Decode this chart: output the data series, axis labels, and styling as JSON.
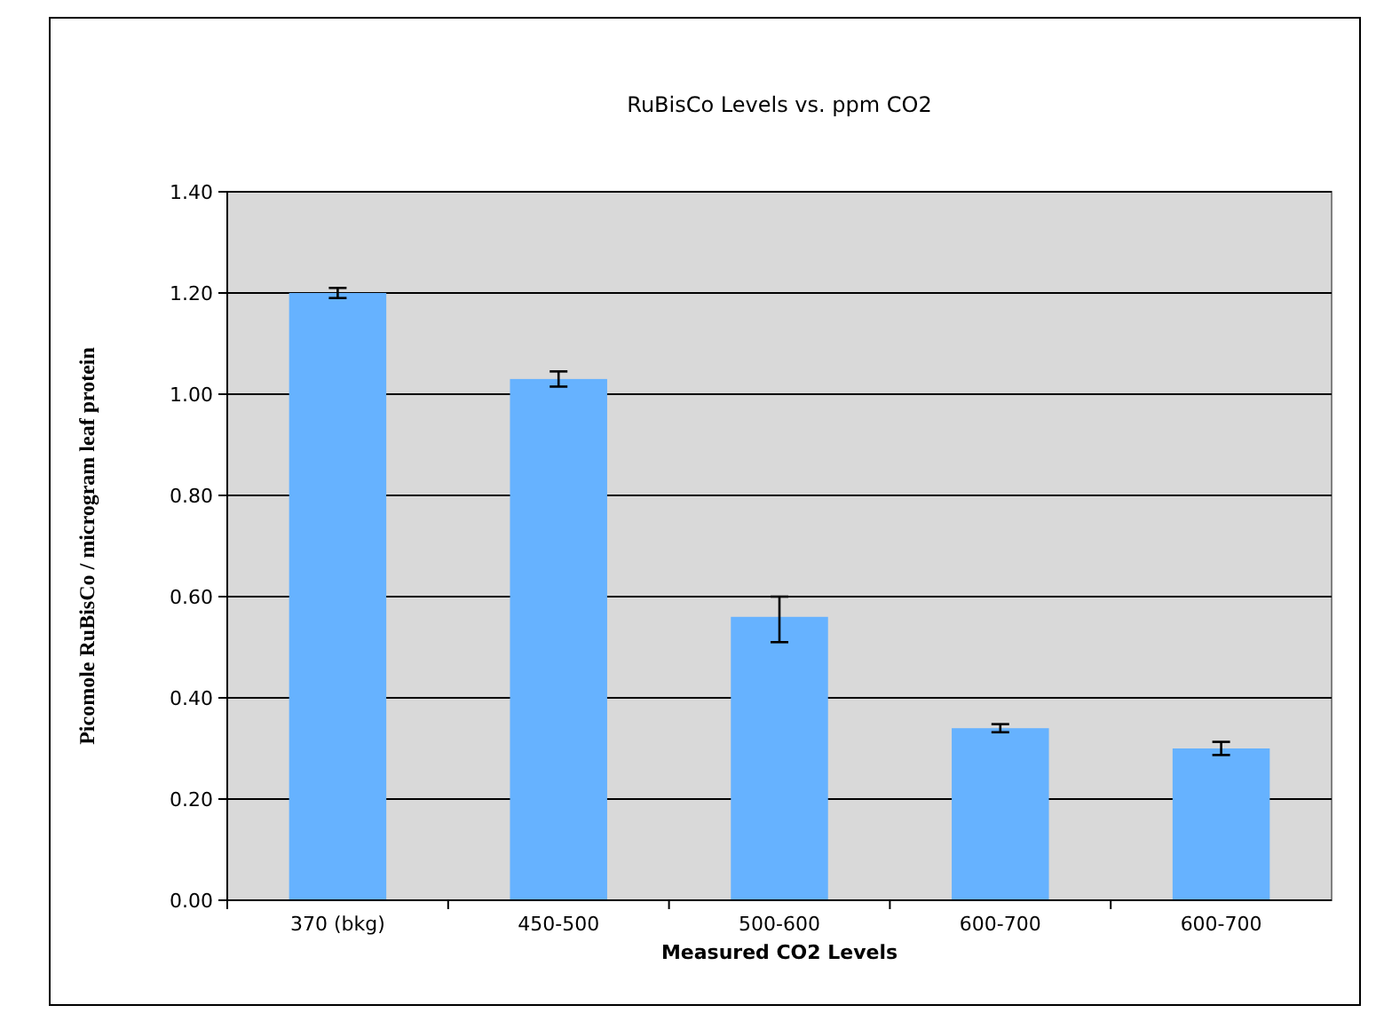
{
  "chart_data": {
    "type": "bar",
    "title": "RuBisCo Levels vs. ppm CO2",
    "xlabel": "Measured CO2 Levels",
    "ylabel": "Picomole RuBisCo / microgram leaf protein",
    "categories": [
      "370 (bkg)",
      "450-500",
      "500-600",
      "600-700",
      "600-700"
    ],
    "values": [
      1.2,
      1.03,
      0.56,
      0.34,
      0.3
    ],
    "errors": [
      0.01,
      0.015,
      [
        0.51,
        0.6
      ],
      0.008,
      0.013
    ],
    "color": "#66b2ff",
    "ylim": [
      0,
      1.4
    ],
    "yticks": [
      {
        "value": 0,
        "label": "0.00"
      },
      {
        "value": 0.2,
        "label": "0.20"
      },
      {
        "value": 0.4,
        "label": "0.40"
      },
      {
        "value": 0.6,
        "label": "0.60"
      },
      {
        "value": 0.8,
        "label": "0.80"
      },
      {
        "value": 1,
        "label": "1.00"
      },
      {
        "value": 1.2,
        "label": "1.20"
      },
      {
        "value": 1.4,
        "label": "1.40"
      }
    ],
    "grid": "y"
  }
}
